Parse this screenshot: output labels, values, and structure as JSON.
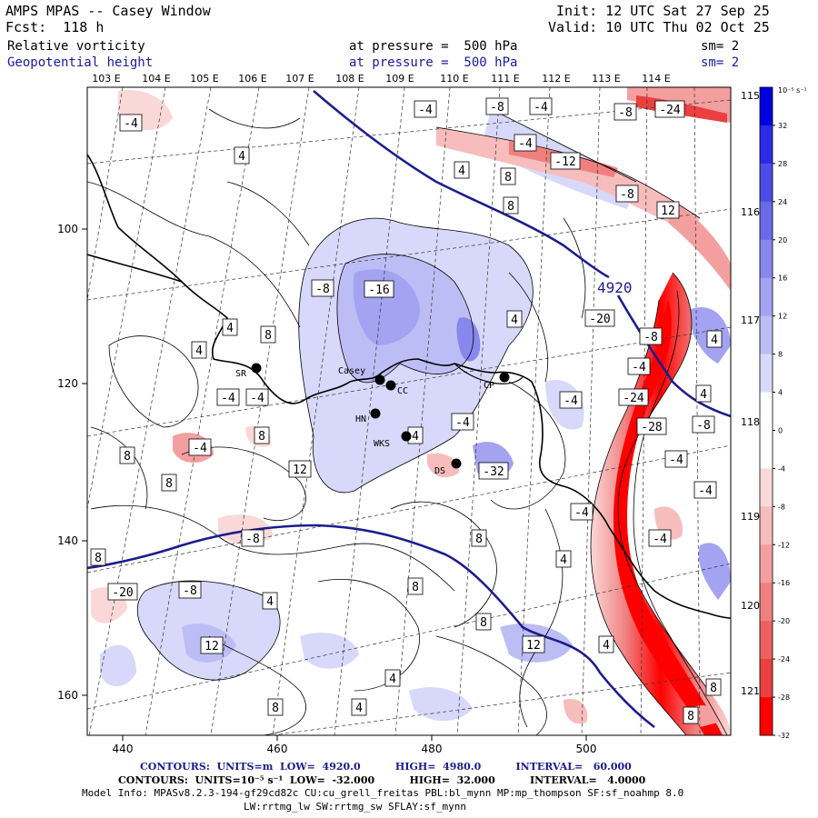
{
  "header": {
    "title": "AMPS MPAS -- Casey Window",
    "forecast": "Fcst:  118 h",
    "init": "Init: 12 UTC Sat 27 Sep 25",
    "valid": "Valid: 10 UTC Thu 02 Oct 25",
    "field1_name": "Relative vorticity",
    "field1_level": "at pressure =  500 hPa",
    "field1_sm": "sm= 2",
    "field2_name": "Geopotential height",
    "field2_level": "at pressure =  500 hPa",
    "field2_sm": "sm= 2"
  },
  "map": {
    "top_lon_labels": [
      "103 E",
      "104 E",
      "105 E",
      "106 E",
      "107 E",
      "108 E",
      "109 E",
      "110 E",
      "111 E",
      "112 E",
      "113 E",
      "114 E"
    ],
    "right_lon_labels": [
      "115 E",
      "116 E",
      "117 E",
      "118 E",
      "119 E",
      "120 E",
      "121 E"
    ],
    "bottom_x_ticks": [
      "440",
      "460",
      "480",
      "500"
    ],
    "left_y_ticks": [
      "100",
      "120",
      "140",
      "160"
    ],
    "height_label": "4920",
    "stations": [
      {
        "name": "SR"
      },
      {
        "name": "Casey"
      },
      {
        "name": "CC"
      },
      {
        "name": "HN"
      },
      {
        "name": "WKS"
      },
      {
        "name": "DS"
      },
      {
        "name": "CP"
      }
    ],
    "vort_labels": [
      "-4",
      "-8",
      "-4",
      "-4",
      "-24",
      "-8",
      "-12",
      "-4",
      "-8",
      "4",
      "4",
      "8",
      "8",
      "12",
      "-8",
      "-16",
      "-8",
      "4",
      "4",
      "8",
      "4",
      "4",
      "-20",
      "-4",
      "-4",
      "4",
      "-4",
      "-24",
      "8",
      "-4",
      "-4",
      "-28",
      "-8",
      "-4",
      "4",
      "8",
      "8",
      "12",
      "-4",
      "-32",
      "-4",
      "-8",
      "8",
      "-4",
      "-4",
      "8",
      "8",
      "4",
      "4",
      "8",
      "-8",
      "4",
      "12",
      "12",
      "4",
      "8",
      "8",
      "4",
      "8",
      "-20"
    ]
  },
  "colorbar": {
    "units": "10⁻⁵ s⁻¹",
    "ticks": [
      "32",
      "28",
      "24",
      "20",
      "16",
      "12",
      "8",
      "4",
      "0",
      "-4",
      "-8",
      "-12",
      "-16",
      "-20",
      "-24",
      "-28",
      "-32"
    ],
    "colors": [
      "#0000e0",
      "#2b2be6",
      "#4c4ce8",
      "#6a6aea",
      "#8787ee",
      "#a3a3f2",
      "#bdbdf6",
      "#d8d8fa",
      "#ffffff",
      "#ffffff",
      "#fbd8d8",
      "#f7bcbc",
      "#f49f9f",
      "#f08080",
      "#ec6060",
      "#ea4040",
      "#ff0000"
    ]
  },
  "footer": {
    "height_contours": "CONTOURS:  UNITS=m  LOW=  4920.0          HIGH=  4980.0          INTERVAL=   60.000",
    "vort_contours": "CONTOURS:  UNITS=10⁻⁵ s⁻¹  LOW=  -32.000          HIGH=  32.000          INTERVAL=   4.0000",
    "model_info1": "Model Info: MPASv8.2.3-194-gf29cd82c CU:cu_grell_freitas PBL:bl_mynn MP:mp_thompson SF:sf_noahmp 8.0",
    "model_info2": "LW:rrtmg_lw SW:rrtmg_sw SFLAY:sf_mynn"
  }
}
